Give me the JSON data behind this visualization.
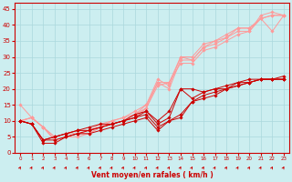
{
  "background_color": "#cceef0",
  "grid_color": "#aad8dc",
  "x_labels": [
    "0",
    "1",
    "2",
    "3",
    "4",
    "5",
    "6",
    "7",
    "8",
    "9",
    "10",
    "11",
    "12",
    "13",
    "14",
    "15",
    "16",
    "17",
    "18",
    "19",
    "20",
    "21",
    "22",
    "23"
  ],
  "y_ticks": [
    0,
    5,
    10,
    15,
    20,
    25,
    30,
    35,
    40,
    45
  ],
  "xlabel": "Vent moyen/en rafales ( km/h )",
  "xlabel_color": "#cc0000",
  "axis_color": "#cc0000",
  "tick_color": "#cc0000",
  "line_color_dark": "#cc0000",
  "line_color_light": "#ff9999",
  "lines_dark": [
    [
      10,
      9,
      3,
      3,
      5,
      6,
      6,
      7,
      8,
      9,
      10,
      11,
      7,
      10,
      11,
      16,
      17,
      18,
      20,
      21,
      22,
      23,
      23,
      23
    ],
    [
      10,
      9,
      4,
      4,
      5,
      6,
      7,
      8,
      9,
      10,
      11,
      12,
      8,
      10,
      12,
      16,
      18,
      19,
      20,
      21,
      22,
      23,
      23,
      23
    ],
    [
      10,
      9,
      4,
      5,
      6,
      7,
      7,
      8,
      9,
      10,
      11,
      13,
      9,
      11,
      20,
      17,
      19,
      20,
      20,
      22,
      23,
      23,
      23,
      23
    ],
    [
      10,
      9,
      4,
      5,
      6,
      7,
      8,
      9,
      9,
      10,
      12,
      13,
      10,
      13,
      20,
      20,
      19,
      20,
      21,
      22,
      22,
      23,
      23,
      24
    ]
  ],
  "lines_light": [
    [
      10,
      11,
      8,
      4,
      5,
      6,
      6,
      8,
      9,
      10,
      11,
      14,
      22,
      22,
      28,
      28,
      32,
      33,
      35,
      37,
      38,
      42,
      38,
      43
    ],
    [
      15,
      11,
      8,
      4,
      5,
      5,
      6,
      8,
      9,
      10,
      12,
      14,
      21,
      22,
      30,
      29,
      33,
      34,
      36,
      38,
      38,
      43,
      44,
      43
    ],
    [
      10,
      11,
      8,
      5,
      6,
      6,
      7,
      8,
      10,
      11,
      12,
      15,
      22,
      20,
      29,
      29,
      33,
      35,
      36,
      39,
      39,
      42,
      43,
      43
    ],
    [
      10,
      11,
      8,
      5,
      6,
      7,
      7,
      9,
      10,
      11,
      13,
      15,
      23,
      21,
      30,
      30,
      34,
      35,
      37,
      39,
      39,
      42,
      43,
      43
    ]
  ],
  "wind_arrows": [
    [
      0,
      45,
      45,
      45,
      45,
      45,
      45,
      45,
      45,
      45,
      45,
      45,
      45,
      45,
      45,
      60,
      60,
      60,
      60,
      60,
      60,
      60,
      60,
      60
    ]
  ],
  "figsize": [
    3.2,
    2.0
  ],
  "dpi": 100
}
